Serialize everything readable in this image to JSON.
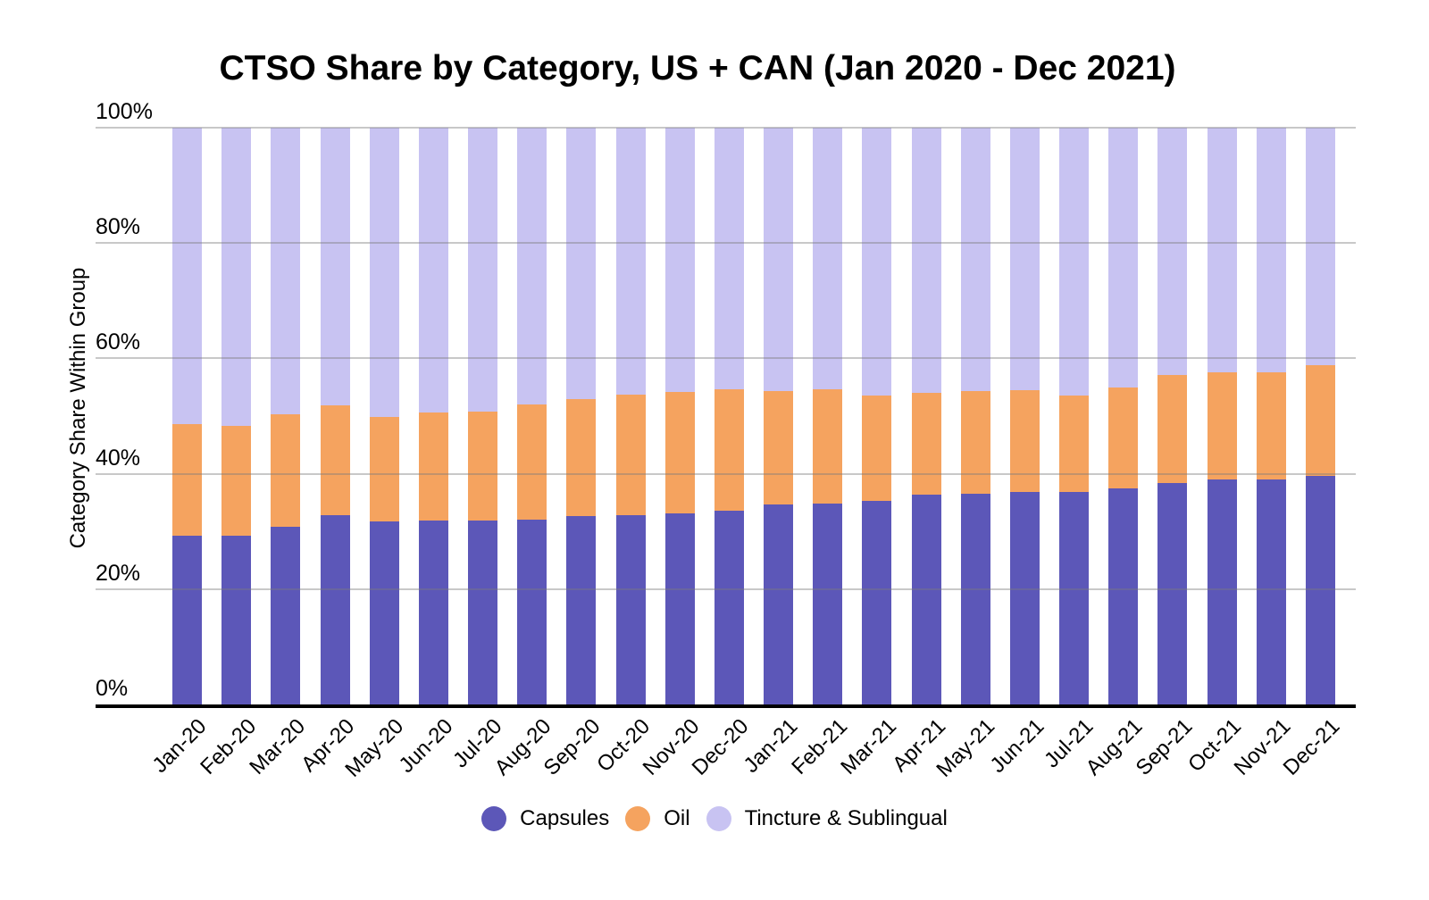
{
  "page": {
    "background": "#ffffff"
  },
  "chart_data": {
    "type": "bar",
    "stacked": true,
    "percent_stacked": true,
    "title": "CTSO Share by Category, US + CAN (Jan 2020 - Dec 2021)",
    "xlabel": "",
    "ylabel": "Category Share Within Group",
    "categories": [
      "Jan-20",
      "Feb-20",
      "Mar-20",
      "Apr-20",
      "May-20",
      "Jun-20",
      "Jul-20",
      "Aug-20",
      "Sep-20",
      "Oct-20",
      "Nov-20",
      "Dec-20",
      "Jan-21",
      "Feb-21",
      "Mar-21",
      "Apr-21",
      "May-21",
      "Jun-21",
      "Jul-21",
      "Aug-21",
      "Sep-21",
      "Oct-21",
      "Nov-21",
      "Dec-21"
    ],
    "series": [
      {
        "name": "Capsules",
        "color": "#5C57B8",
        "values": [
          29.2,
          29.2,
          30.8,
          32.9,
          31.7,
          31.9,
          31.9,
          32.0,
          32.6,
          32.8,
          33.2,
          33.6,
          34.7,
          34.8,
          35.3,
          36.4,
          36.6,
          36.9,
          36.9,
          37.4,
          38.4,
          39.0,
          39.0,
          39.7
        ]
      },
      {
        "name": "Oil",
        "color": "#F5A35F",
        "values": [
          19.4,
          19.1,
          19.5,
          19.0,
          18.2,
          18.8,
          18.9,
          20.0,
          20.3,
          20.9,
          21.0,
          21.0,
          19.6,
          19.8,
          18.2,
          17.6,
          17.7,
          17.6,
          16.6,
          17.5,
          18.8,
          18.6,
          18.6,
          19.2
        ]
      },
      {
        "name": "Tincture & Sublingual",
        "color": "#C8C3F2",
        "values": [
          51.4,
          51.7,
          49.7,
          48.1,
          50.1,
          49.3,
          49.2,
          48.0,
          47.1,
          46.3,
          45.8,
          45.4,
          45.7,
          45.4,
          46.5,
          46.0,
          45.7,
          45.5,
          46.5,
          45.1,
          42.8,
          42.4,
          42.4,
          41.1
        ]
      }
    ],
    "y_axis": {
      "min": 0,
      "max": 100,
      "tick_step": 20,
      "ticks": [
        {
          "v": 0,
          "label": "0%"
        },
        {
          "v": 20,
          "label": "20%"
        },
        {
          "v": 40,
          "label": "40%"
        },
        {
          "v": 60,
          "label": "60%"
        },
        {
          "v": 80,
          "label": "80%"
        },
        {
          "v": 100,
          "label": "100%"
        }
      ]
    },
    "grid": true,
    "legend_position": "bottom",
    "axis_color": "#000000",
    "gridline_color": "#cdcdcd",
    "text_color": "#000000"
  }
}
